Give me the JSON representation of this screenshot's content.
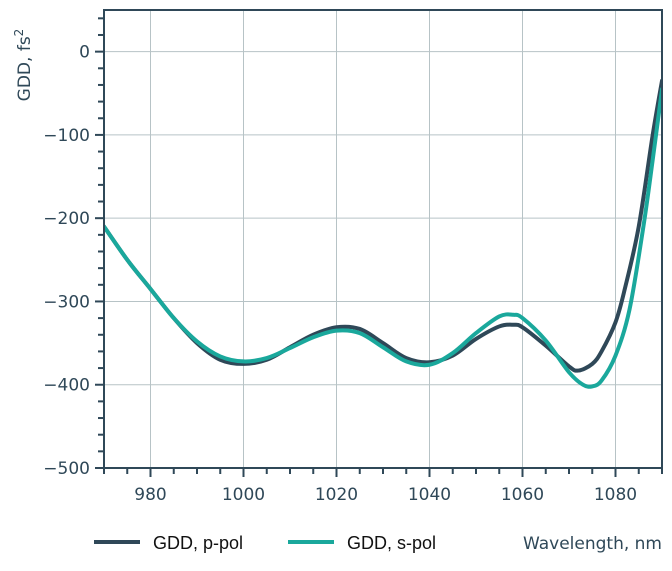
{
  "chart_data": {
    "type": "line",
    "xlabel": "Wavelength, nm",
    "ylabel": "GDD, fs",
    "ylabel_sup": "2",
    "xlim": [
      970,
      1090
    ],
    "ylim": [
      -500,
      50
    ],
    "xticks": [
      980,
      1000,
      1020,
      1040,
      1060,
      1080
    ],
    "yticks": [
      0,
      -100,
      -200,
      -300,
      -400,
      -500
    ],
    "ytick_labels": [
      "0",
      "−100",
      "−200",
      "−300",
      "−400",
      "−500"
    ],
    "grid": true,
    "legend_position": "bottom",
    "colors": {
      "axis": "#2f4858",
      "grid": "#b7c3c6",
      "p_pol": "#2f4858",
      "s_pol": "#1aa89c"
    },
    "series": [
      {
        "name": "GDD, p-pol",
        "x": [
          970,
          975,
          980,
          985,
          990,
          995,
          1000,
          1005,
          1010,
          1015,
          1020,
          1025,
          1030,
          1035,
          1040,
          1045,
          1050,
          1055,
          1058,
          1060,
          1065,
          1070,
          1072,
          1075,
          1077,
          1080,
          1082,
          1085,
          1088,
          1090
        ],
        "y": [
          -210,
          -250,
          -285,
          -320,
          -350,
          -370,
          -375,
          -370,
          -355,
          -340,
          -331,
          -333,
          -350,
          -368,
          -373,
          -365,
          -345,
          -330,
          -328,
          -331,
          -353,
          -378,
          -383,
          -375,
          -360,
          -325,
          -285,
          -210,
          -100,
          -35
        ]
      },
      {
        "name": "GDD, s-pol",
        "x": [
          970,
          975,
          980,
          985,
          990,
          995,
          1000,
          1005,
          1010,
          1015,
          1020,
          1025,
          1030,
          1035,
          1040,
          1045,
          1050,
          1055,
          1058,
          1060,
          1065,
          1070,
          1073,
          1075,
          1077,
          1080,
          1083,
          1086,
          1088,
          1090
        ],
        "y": [
          -210,
          -250,
          -285,
          -320,
          -348,
          -366,
          -372,
          -368,
          -356,
          -343,
          -335,
          -338,
          -355,
          -372,
          -376,
          -362,
          -338,
          -318,
          -316,
          -320,
          -347,
          -385,
          -400,
          -402,
          -395,
          -365,
          -310,
          -210,
          -130,
          -45
        ]
      }
    ]
  }
}
